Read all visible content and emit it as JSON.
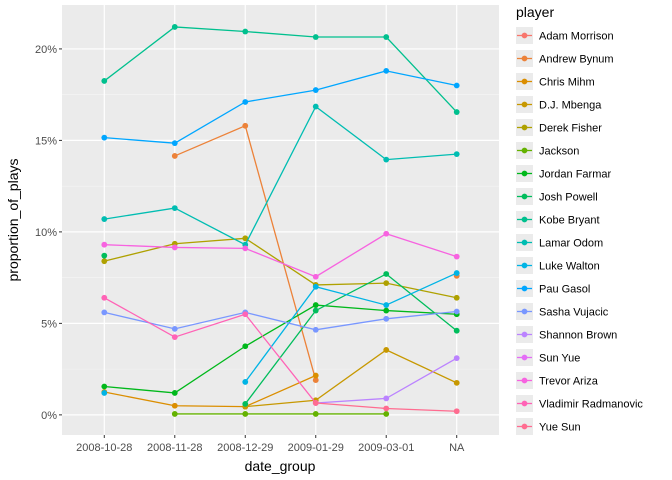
{
  "chart_data": {
    "type": "line",
    "xlabel": "date_group",
    "ylabel": "proportion_of_plays",
    "categories": [
      "2008-10-28",
      "2008-11-28",
      "2008-12-29",
      "2009-01-29",
      "2009-03-01",
      "NA"
    ],
    "ylim": [
      -0.011,
      0.224
    ],
    "yticks": [
      0,
      0.05,
      0.1,
      0.15,
      0.2
    ],
    "ytick_labels": [
      "0%",
      "5%",
      "10%",
      "15%",
      "20%"
    ],
    "grid": true,
    "legend_title": "player",
    "legend_position": "right",
    "series": [
      {
        "name": "Adam Morrison",
        "color": "#F8766D",
        "values": [
          null,
          null,
          null,
          null,
          null,
          null
        ]
      },
      {
        "name": "Andrew Bynum",
        "color": "#EC8239",
        "values": [
          null,
          0.1415,
          0.158,
          0.019,
          null,
          0.076
        ]
      },
      {
        "name": "Chris Mihm",
        "color": "#DB8E00",
        "values": [
          0.0125,
          0.005,
          0.0045,
          0.0215,
          null,
          null
        ]
      },
      {
        "name": "D.J. Mbenga",
        "color": "#C79800",
        "values": [
          null,
          null,
          0.0045,
          0.008,
          0.0355,
          0.0175
        ]
      },
      {
        "name": "Derek Fisher",
        "color": "#AFA100",
        "values": [
          0.084,
          0.0935,
          0.0965,
          0.071,
          0.072,
          0.064
        ]
      },
      {
        "name": "Jackson",
        "color": "#64B200",
        "values": [
          null,
          0.0005,
          0.0005,
          0.0005,
          0.0005,
          null
        ]
      },
      {
        "name": "Jordan Farmar",
        "color": "#00B81B",
        "values": [
          0.0155,
          0.012,
          0.0375,
          0.06,
          0.057,
          0.055
        ]
      },
      {
        "name": "Josh Powell",
        "color": "#00BD5C",
        "values": [
          0.087,
          null,
          0.006,
          0.057,
          0.077,
          0.046
        ]
      },
      {
        "name": "Kobe Bryant",
        "color": "#00C08E",
        "values": [
          0.1825,
          0.212,
          0.2095,
          0.2065,
          0.2065,
          0.1655
        ]
      },
      {
        "name": "Lamar Odom",
        "color": "#00BDB2",
        "values": [
          0.107,
          0.113,
          0.093,
          0.1685,
          0.1395,
          0.1425
        ]
      },
      {
        "name": "Luke Walton",
        "color": "#00B4E5",
        "values": [
          0.012,
          null,
          0.018,
          0.07,
          0.06,
          0.0775
        ]
      },
      {
        "name": "Pau Gasol",
        "color": "#00A6FF",
        "values": [
          0.1515,
          0.1485,
          0.171,
          0.1775,
          0.188,
          0.18
        ]
      },
      {
        "name": "Sasha Vujacic",
        "color": "#7997FF",
        "values": [
          0.056,
          0.047,
          0.056,
          0.0465,
          0.0525,
          0.0565
        ]
      },
      {
        "name": "Shannon Brown",
        "color": "#BB83FF",
        "values": [
          null,
          null,
          null,
          0.0065,
          0.009,
          0.031
        ]
      },
      {
        "name": "Sun Yue",
        "color": "#E46DF6",
        "values": [
          null,
          null,
          null,
          null,
          null,
          null
        ]
      },
      {
        "name": "Trevor Ariza",
        "color": "#F763E0",
        "values": [
          0.093,
          0.0915,
          0.091,
          0.0755,
          0.099,
          0.0865
        ]
      },
      {
        "name": "Vladimir Radmanovic",
        "color": "#FF63B6",
        "values": [
          0.064,
          0.0425,
          0.055,
          0.0065,
          null,
          null
        ]
      },
      {
        "name": "Yue Sun",
        "color": "#FF6C90",
        "values": [
          null,
          null,
          null,
          0.0065,
          0.0035,
          0.002
        ]
      }
    ]
  }
}
